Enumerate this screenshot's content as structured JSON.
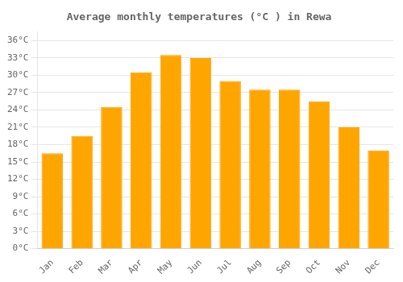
{
  "chart_data": {
    "type": "bar",
    "title": "Average monthly temperatures (°C ) in Rewa",
    "categories": [
      "Jan",
      "Feb",
      "Mar",
      "Apr",
      "May",
      "Jun",
      "Jul",
      "Aug",
      "Sep",
      "Oct",
      "Nov",
      "Dec"
    ],
    "values": [
      16.5,
      19.5,
      24.5,
      30.5,
      33.5,
      33.0,
      29.0,
      27.5,
      27.5,
      25.5,
      21.0,
      17.0
    ],
    "color": "#FFA500",
    "ylim": [
      0,
      37.5
    ],
    "yticks": [
      {
        "value": 0,
        "label": "0°C"
      },
      {
        "value": 3,
        "label": "3°C"
      },
      {
        "value": 6,
        "label": "6°C"
      },
      {
        "value": 9,
        "label": "9°C"
      },
      {
        "value": 12,
        "label": "12°C"
      },
      {
        "value": 15,
        "label": "15°C"
      },
      {
        "value": 18,
        "label": "18°C"
      },
      {
        "value": 21,
        "label": "21°C"
      },
      {
        "value": 24,
        "label": "24°C"
      },
      {
        "value": 27,
        "label": "27°C"
      },
      {
        "value": 30,
        "label": "30°C"
      },
      {
        "value": 33,
        "label": "33°C"
      },
      {
        "value": 36,
        "label": "36°C"
      }
    ],
    "grid": true
  }
}
